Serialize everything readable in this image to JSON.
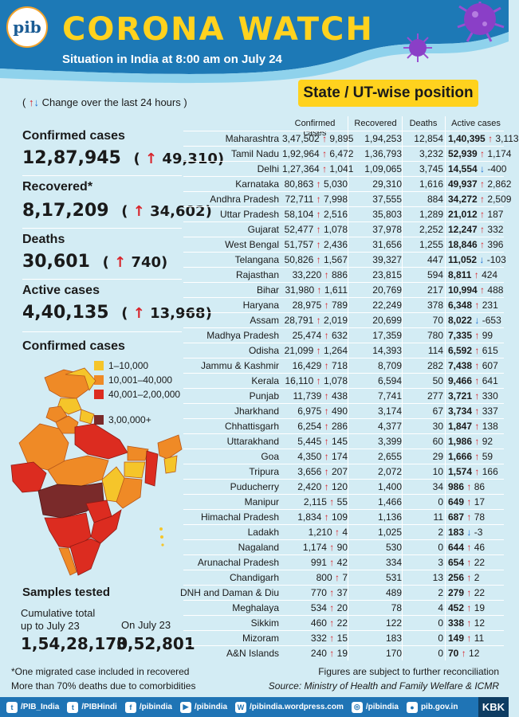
{
  "header": {
    "logo_text": "pib",
    "title": "CORONA WATCH",
    "subtitle": "Situation in India at 8:00 am on July 24"
  },
  "state_badge": "State / UT-wise position",
  "change_legend": "Change over the last 24 hours",
  "stats": [
    {
      "label": "Confirmed cases",
      "value": "12,87,945",
      "delta": "49,310"
    },
    {
      "label": "Recovered*",
      "value": "8,17,209",
      "delta": "34,602"
    },
    {
      "label": "Deaths",
      "value": "30,601",
      "delta": "740"
    },
    {
      "label": "Active cases",
      "value": "4,40,135",
      "delta": "13,968"
    }
  ],
  "map": {
    "title": "Confirmed cases",
    "legend": [
      {
        "label": "1–10,000",
        "color": "#f5c52a"
      },
      {
        "label": "10,001–40,000",
        "color": "#ef8a26"
      },
      {
        "label": "40,001–2,00,000",
        "color": "#dc2c20"
      },
      {
        "label": "3,00,000+",
        "color": "#7a2a2a"
      }
    ]
  },
  "samples": {
    "title": "Samples tested",
    "cumulative_label_1": "Cumulative total",
    "cumulative_label_2": "up to July 23",
    "cumulative_value": "1,54,28,170",
    "day_label": "On July 23",
    "day_value": "3,52,801"
  },
  "table": {
    "headers": {
      "confirmed": "Confirmed cases",
      "recovered": "Recovered",
      "deaths": "Deaths",
      "active": "Active cases"
    },
    "rows": [
      {
        "state": "Maharashtra",
        "confirmed": "3,47,502",
        "c_delta": "9,895",
        "recovered": "1,94,253",
        "deaths": "12,854",
        "active": "1,40,395",
        "a_dir": "up",
        "a_delta": "3,113"
      },
      {
        "state": "Tamil Nadu",
        "confirmed": "1,92,964",
        "c_delta": "6,472",
        "recovered": "1,36,793",
        "deaths": "3,232",
        "active": "52,939",
        "a_dir": "up",
        "a_delta": "1,174"
      },
      {
        "state": "Delhi",
        "confirmed": "1,27,364",
        "c_delta": "1,041",
        "recovered": "1,09,065",
        "deaths": "3,745",
        "active": "14,554",
        "a_dir": "down",
        "a_delta": "-400"
      },
      {
        "state": "Karnataka",
        "confirmed": "80,863",
        "c_delta": "5,030",
        "recovered": "29,310",
        "deaths": "1,616",
        "active": "49,937",
        "a_dir": "up",
        "a_delta": "2,862"
      },
      {
        "state": "Andhra Pradesh",
        "confirmed": "72,711",
        "c_delta": "7,998",
        "recovered": "37,555",
        "deaths": "884",
        "active": "34,272",
        "a_dir": "up",
        "a_delta": "2,509"
      },
      {
        "state": "Uttar Pradesh",
        "confirmed": "58,104",
        "c_delta": "2,516",
        "recovered": "35,803",
        "deaths": "1,289",
        "active": "21,012",
        "a_dir": "up",
        "a_delta": "187"
      },
      {
        "state": "Gujarat",
        "confirmed": "52,477",
        "c_delta": "1,078",
        "recovered": "37,978",
        "deaths": "2,252",
        "active": "12,247",
        "a_dir": "up",
        "a_delta": "332"
      },
      {
        "state": "West Bengal",
        "confirmed": "51,757",
        "c_delta": "2,436",
        "recovered": "31,656",
        "deaths": "1,255",
        "active": "18,846",
        "a_dir": "up",
        "a_delta": "396"
      },
      {
        "state": "Telangana",
        "confirmed": "50,826",
        "c_delta": "1,567",
        "recovered": "39,327",
        "deaths": "447",
        "active": "11,052",
        "a_dir": "down",
        "a_delta": "-103"
      },
      {
        "state": "Rajasthan",
        "confirmed": "33,220",
        "c_delta": "886",
        "recovered": "23,815",
        "deaths": "594",
        "active": "8,811",
        "a_dir": "up",
        "a_delta": "424"
      },
      {
        "state": "Bihar",
        "confirmed": "31,980",
        "c_delta": "1,611",
        "recovered": "20,769",
        "deaths": "217",
        "active": "10,994",
        "a_dir": "up",
        "a_delta": "488"
      },
      {
        "state": "Haryana",
        "confirmed": "28,975",
        "c_delta": "789",
        "recovered": "22,249",
        "deaths": "378",
        "active": "6,348",
        "a_dir": "up",
        "a_delta": "231"
      },
      {
        "state": "Assam",
        "confirmed": "28,791",
        "c_delta": "2,019",
        "recovered": "20,699",
        "deaths": "70",
        "active": "8,022",
        "a_dir": "down",
        "a_delta": "-653"
      },
      {
        "state": "Madhya Pradesh",
        "confirmed": "25,474",
        "c_delta": "632",
        "recovered": "17,359",
        "deaths": "780",
        "active": "7,335",
        "a_dir": "up",
        "a_delta": "99"
      },
      {
        "state": "Odisha",
        "confirmed": "21,099",
        "c_delta": "1,264",
        "recovered": "14,393",
        "deaths": "114",
        "active": "6,592",
        "a_dir": "up",
        "a_delta": "615"
      },
      {
        "state": "Jammu & Kashmir",
        "confirmed": "16,429",
        "c_delta": "718",
        "recovered": "8,709",
        "deaths": "282",
        "active": "7,438",
        "a_dir": "up",
        "a_delta": "607"
      },
      {
        "state": "Kerala",
        "confirmed": "16,110",
        "c_delta": "1,078",
        "recovered": "6,594",
        "deaths": "50",
        "active": "9,466",
        "a_dir": "up",
        "a_delta": "641"
      },
      {
        "state": "Punjab",
        "confirmed": "11,739",
        "c_delta": "438",
        "recovered": "7,741",
        "deaths": "277",
        "active": "3,721",
        "a_dir": "up",
        "a_delta": "330"
      },
      {
        "state": "Jharkhand",
        "confirmed": "6,975",
        "c_delta": "490",
        "recovered": "3,174",
        "deaths": "67",
        "active": "3,734",
        "a_dir": "up",
        "a_delta": "337"
      },
      {
        "state": "Chhattisgarh",
        "confirmed": "6,254",
        "c_delta": "286",
        "recovered": "4,377",
        "deaths": "30",
        "active": "1,847",
        "a_dir": "up",
        "a_delta": "138"
      },
      {
        "state": "Uttarakhand",
        "confirmed": "5,445",
        "c_delta": "145",
        "recovered": "3,399",
        "deaths": "60",
        "active": "1,986",
        "a_dir": "up",
        "a_delta": "92"
      },
      {
        "state": "Goa",
        "confirmed": "4,350",
        "c_delta": "174",
        "recovered": "2,655",
        "deaths": "29",
        "active": "1,666",
        "a_dir": "up",
        "a_delta": "59"
      },
      {
        "state": "Tripura",
        "confirmed": "3,656",
        "c_delta": "207",
        "recovered": "2,072",
        "deaths": "10",
        "active": "1,574",
        "a_dir": "up",
        "a_delta": "166"
      },
      {
        "state": "Puducherry",
        "confirmed": "2,420",
        "c_delta": "120",
        "recovered": "1,400",
        "deaths": "34",
        "active": "986",
        "a_dir": "up",
        "a_delta": "86"
      },
      {
        "state": "Manipur",
        "confirmed": "2,115",
        "c_delta": "55",
        "recovered": "1,466",
        "deaths": "0",
        "active": "649",
        "a_dir": "up",
        "a_delta": "17"
      },
      {
        "state": "Himachal Pradesh",
        "confirmed": "1,834",
        "c_delta": "109",
        "recovered": "1,136",
        "deaths": "11",
        "active": "687",
        "a_dir": "up",
        "a_delta": "78"
      },
      {
        "state": "Ladakh",
        "confirmed": "1,210",
        "c_delta": "4",
        "recovered": "1,025",
        "deaths": "2",
        "active": "183",
        "a_dir": "down",
        "a_delta": "-3"
      },
      {
        "state": "Nagaland",
        "confirmed": "1,174",
        "c_delta": "90",
        "recovered": "530",
        "deaths": "0",
        "active": "644",
        "a_dir": "up",
        "a_delta": "46"
      },
      {
        "state": "Arunachal Pradesh",
        "confirmed": "991",
        "c_delta": "42",
        "recovered": "334",
        "deaths": "3",
        "active": "654",
        "a_dir": "up",
        "a_delta": "22"
      },
      {
        "state": "Chandigarh",
        "confirmed": "800",
        "c_delta": "7",
        "recovered": "531",
        "deaths": "13",
        "active": "256",
        "a_dir": "up",
        "a_delta": "2"
      },
      {
        "state": "DNH and Daman & Diu",
        "confirmed": "770",
        "c_delta": "37",
        "recovered": "489",
        "deaths": "2",
        "active": "279",
        "a_dir": "up",
        "a_delta": "22"
      },
      {
        "state": "Meghalaya",
        "confirmed": "534",
        "c_delta": "20",
        "recovered": "78",
        "deaths": "4",
        "active": "452",
        "a_dir": "up",
        "a_delta": "19"
      },
      {
        "state": "Sikkim",
        "confirmed": "460",
        "c_delta": "22",
        "recovered": "122",
        "deaths": "0",
        "active": "338",
        "a_dir": "up",
        "a_delta": "12"
      },
      {
        "state": "Mizoram",
        "confirmed": "332",
        "c_delta": "15",
        "recovered": "183",
        "deaths": "0",
        "active": "149",
        "a_dir": "up",
        "a_delta": "11"
      },
      {
        "state": "A&N Islands",
        "confirmed": "240",
        "c_delta": "19",
        "recovered": "170",
        "deaths": "0",
        "active": "70",
        "a_dir": "up",
        "a_delta": "12"
      }
    ]
  },
  "footnotes": {
    "left_1": "*One migrated case included in recovered",
    "left_2": "More than 70% deaths due to comorbidities",
    "right_1": "Figures are subject to further reconciliation",
    "right_2": "Source: Ministry of Health and Family Welfare & ICMR"
  },
  "social": [
    {
      "icon": "twitter-icon",
      "glyph": "t",
      "label": "/PIB_India"
    },
    {
      "icon": "twitter-icon",
      "glyph": "t",
      "label": "/PIBHindi"
    },
    {
      "icon": "facebook-icon",
      "glyph": "f",
      "label": "/pibindia"
    },
    {
      "icon": "youtube-icon",
      "glyph": "▶",
      "label": "/pibindia"
    },
    {
      "icon": "wordpress-icon",
      "glyph": "W",
      "label": "/pibindia.wordpress.com"
    },
    {
      "icon": "instagram-icon",
      "glyph": "◎",
      "label": "/pibindia"
    },
    {
      "icon": "website-icon",
      "glyph": "●",
      "label": "pib.gov.in"
    }
  ],
  "brand": "KBK"
}
